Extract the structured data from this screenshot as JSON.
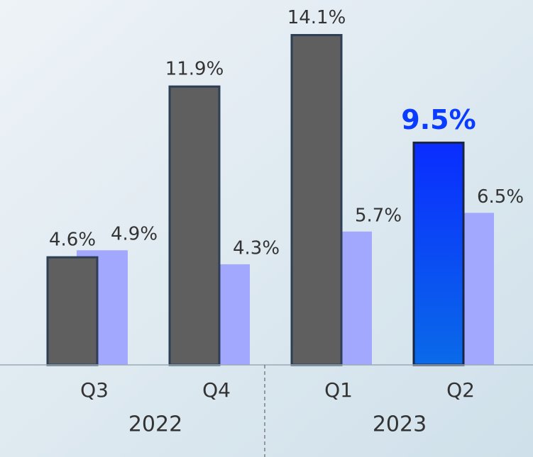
{
  "chart_data": {
    "type": "bar",
    "categories": [
      "Q3",
      "Q4",
      "Q1",
      "Q2"
    ],
    "year_labels": [
      "2022",
      "2023"
    ],
    "series": [
      {
        "color": "#5f5f5f",
        "colors": [
          "#5f5f5f",
          "#5f5f5f",
          "#5f5f5f",
          "#0a3cff"
        ],
        "values": [
          4.6,
          11.9,
          14.1,
          9.5
        ],
        "value_labels": [
          "4.6%",
          "11.9%",
          "14.1%",
          "9.5%"
        ]
      },
      {
        "color": "#a3a8ff",
        "values": [
          4.9,
          4.3,
          5.7,
          6.5
        ],
        "value_labels": [
          "4.9%",
          "4.3%",
          "5.7%",
          "6.5%"
        ]
      }
    ],
    "highlight": 3,
    "ylim": [
      0,
      15.6
    ]
  }
}
